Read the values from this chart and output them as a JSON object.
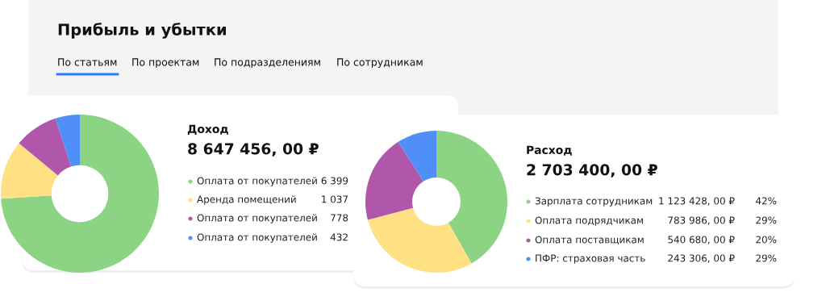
{
  "chart_data": [
    {
      "type": "other",
      "title": "Прибыль и убытки",
      "annotations": [
        "По статьям",
        "По проектам",
        "По подразделениям",
        "По сотрудникам"
      ]
    },
    {
      "type": "donut",
      "title": "Доход",
      "subtitle": "8 647 456, 00 ₽",
      "categories": [
        "Оплата от покупателей",
        "Аренда помещений",
        "Оплата от покупателей",
        "Оплата от покупателей"
      ],
      "values": [
        74,
        12,
        9,
        5
      ],
      "legend": "right",
      "colors": [
        "#8cd484",
        "#ffe082",
        "#b057ab",
        "#4f8ff7"
      ],
      "annotations": [
        "6 399",
        "1 037",
        "778",
        "432"
      ]
    },
    {
      "type": "donut",
      "title": "Расход",
      "subtitle": "2 703 400, 00 ₽",
      "categories": [
        "Зарплата сотрудникам",
        "Оплата подрядчикам",
        "Оплата поставщикам",
        "ПФР: страховая часть"
      ],
      "values": [
        1123428,
        783986,
        540680,
        243306
      ],
      "legend": "right",
      "colors": [
        "#8cd484",
        "#ffe082",
        "#b057ab",
        "#4f8ff7"
      ],
      "value_labels": [
        "1 123 428, 00 ₽",
        "783 986, 00 ₽",
        "540 680, 00 ₽",
        "243 306, 00 ₽"
      ],
      "annotations": [
        "42%",
        "29%",
        "20%",
        "29%"
      ]
    }
  ]
}
